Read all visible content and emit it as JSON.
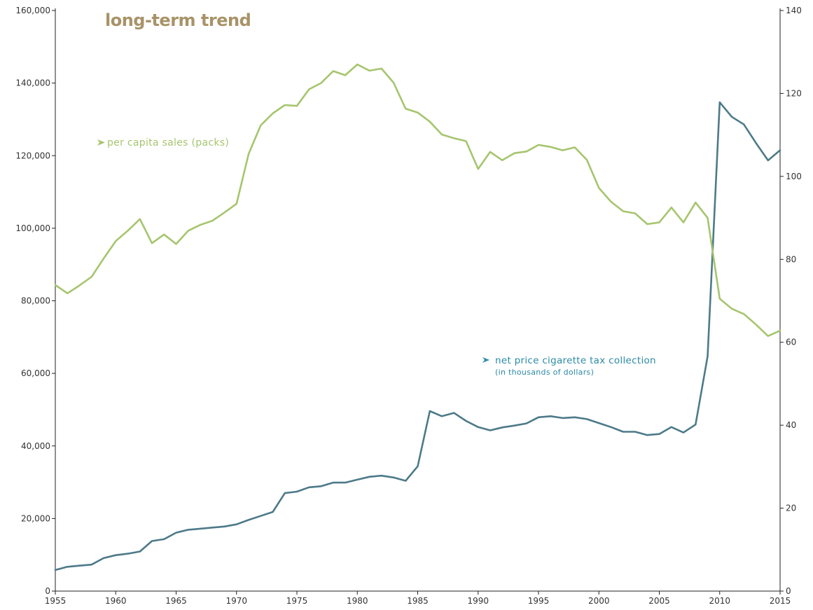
{
  "chart_data": {
    "type": "line",
    "title": "long-term trend",
    "colors": {
      "sales": "#a6c56e",
      "tax": "#4d7a89",
      "title": "#a89368"
    },
    "annotations": {
      "sales_label": "per capita sales (packs)",
      "tax_label": "net price cigarette tax collection",
      "tax_sublabel": "(in thousands of dollars)"
    },
    "x": [
      1955,
      1956,
      1957,
      1958,
      1959,
      1960,
      1961,
      1962,
      1963,
      1964,
      1965,
      1966,
      1967,
      1968,
      1969,
      1970,
      1971,
      1972,
      1973,
      1974,
      1975,
      1976,
      1977,
      1978,
      1979,
      1980,
      1981,
      1982,
      1983,
      1984,
      1985,
      1986,
      1987,
      1988,
      1989,
      1990,
      1991,
      1992,
      1993,
      1994,
      1995,
      1996,
      1997,
      1998,
      1999,
      2000,
      2001,
      2002,
      2003,
      2004,
      2005,
      2006,
      2007,
      2008,
      2009,
      2010,
      2011,
      2012,
      2013,
      2014,
      2015
    ],
    "xlim": [
      1955,
      2015
    ],
    "x_ticks": [
      1955,
      1960,
      1965,
      1970,
      1975,
      1980,
      1985,
      1990,
      1995,
      2000,
      2005,
      2010,
      2015
    ],
    "y_left": {
      "lim": [
        0,
        160000
      ],
      "ticks": [
        0,
        20000,
        40000,
        60000,
        80000,
        100000,
        120000,
        140000,
        160000
      ],
      "tick_labels": [
        "0",
        "20,000",
        "40,000",
        "60,000",
        "80,000",
        "100,000",
        "120,000",
        "140,000",
        "160,000"
      ]
    },
    "y_right": {
      "lim": [
        0,
        140
      ],
      "ticks": [
        0,
        20,
        40,
        60,
        80,
        100,
        120,
        140
      ],
      "tick_labels": [
        "0",
        "20",
        "40",
        "60",
        "80",
        "100",
        "120",
        "140"
      ]
    },
    "series": [
      {
        "key": "tax",
        "axis": "left",
        "values": [
          5800,
          6700,
          7000,
          7300,
          9100,
          9900,
          10300,
          10900,
          13800,
          14300,
          16100,
          16900,
          17200,
          17500,
          17800,
          18400,
          19600,
          20700,
          21800,
          27000,
          27400,
          28600,
          28900,
          29900,
          29900,
          30700,
          31500,
          31800,
          31300,
          30400,
          34400,
          49600,
          48200,
          49100,
          46900,
          45200,
          44300,
          45100,
          45600,
          46200,
          47900,
          48200,
          47700,
          47900,
          47400,
          46300,
          45200,
          43900,
          43900,
          43000,
          43300,
          45200,
          43700,
          45900,
          64700,
          134700,
          130700,
          128600,
          123500,
          118700,
          121500
        ]
      },
      {
        "key": "sales",
        "axis": "right",
        "values": [
          73.8,
          71.8,
          73.7,
          75.8,
          80.2,
          84.4,
          86.9,
          89.7,
          83.9,
          86,
          83.7,
          86.9,
          88.3,
          89.3,
          91.3,
          93.4,
          105.4,
          112.3,
          115.2,
          117.2,
          117,
          121,
          122.5,
          125.4,
          124.4,
          127,
          125.5,
          126,
          122.6,
          116.3,
          115.4,
          113.2,
          110.1,
          109.2,
          108.5,
          101.8,
          105.9,
          103.9,
          105.6,
          106,
          107.6,
          107.1,
          106.3,
          107,
          104,
          97.2,
          93.9,
          91.6,
          91.1,
          88.5,
          88.9,
          92.5,
          88.9,
          93.7,
          90,
          70.5,
          68.1,
          66.8,
          64.3,
          61.5,
          62.8
        ]
      }
    ]
  }
}
